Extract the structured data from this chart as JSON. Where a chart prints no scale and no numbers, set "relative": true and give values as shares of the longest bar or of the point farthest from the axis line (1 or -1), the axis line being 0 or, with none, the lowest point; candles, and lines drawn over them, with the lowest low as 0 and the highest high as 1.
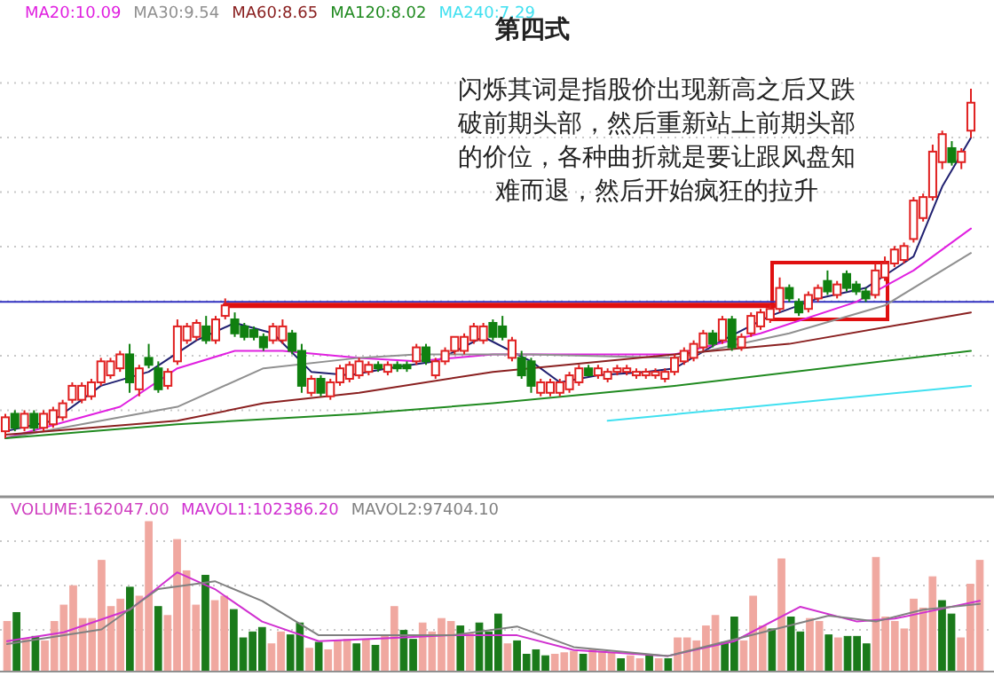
{
  "chart_data": [
    {
      "type": "candlestick",
      "title": "第四式",
      "relative": true,
      "grid": true,
      "categories": [
        null,
        null,
        null,
        null,
        null,
        null,
        null,
        null,
        null,
        null,
        null,
        null,
        null,
        null,
        null,
        null,
        null,
        null,
        null,
        null,
        null,
        null,
        null,
        null,
        null,
        null,
        null,
        null,
        null,
        null,
        null,
        null,
        null,
        null,
        null,
        null,
        null,
        null,
        null,
        null,
        null,
        null,
        null,
        null,
        null,
        null,
        null,
        null,
        null,
        null,
        null,
        null,
        null,
        null,
        null,
        null,
        null,
        null,
        null,
        null,
        null,
        null,
        null,
        null,
        null,
        null,
        null,
        null,
        null,
        null,
        null,
        null,
        null,
        null,
        null,
        null,
        null,
        null,
        null,
        null,
        null,
        null,
        null,
        null,
        null,
        null,
        null,
        null,
        null,
        null,
        null,
        null,
        null,
        null,
        null,
        null,
        null,
        null,
        null,
        null,
        null,
        null
      ],
      "ohlc": [
        [
          0.02,
          0.07,
          0,
          0.06
        ],
        [
          0.07,
          0.08,
          0.02,
          0.03
        ],
        [
          0.03,
          0.08,
          0.02,
          0.07
        ],
        [
          0.07,
          0.08,
          0.02,
          0.03
        ],
        [
          0.03,
          0.08,
          0.02,
          0.07
        ],
        [
          0.04,
          0.09,
          0.03,
          0.08
        ],
        [
          0.06,
          0.11,
          0.05,
          0.1
        ],
        [
          0.11,
          0.16,
          0.1,
          0.15
        ],
        [
          0.11,
          0.16,
          0.1,
          0.15
        ],
        [
          0.12,
          0.17,
          0.11,
          0.16
        ],
        [
          0.16,
          0.23,
          0.15,
          0.22
        ],
        [
          0.18,
          0.23,
          0.17,
          0.22
        ],
        [
          0.2,
          0.25,
          0.19,
          0.24
        ],
        [
          0.24,
          0.27,
          0.13,
          0.16
        ],
        [
          0.14,
          0.21,
          0.12,
          0.2
        ],
        [
          0.23,
          0.27,
          0.2,
          0.21
        ],
        [
          0.2,
          0.22,
          0.13,
          0.14
        ],
        [
          0.15,
          0.2,
          0.14,
          0.19
        ],
        [
          0.22,
          0.34,
          0.21,
          0.32
        ],
        [
          0.28,
          0.33,
          0.27,
          0.32
        ],
        [
          0.29,
          0.34,
          0.28,
          0.33
        ],
        [
          0.32,
          0.35,
          0.27,
          0.28
        ],
        [
          0.28,
          0.35,
          0.27,
          0.34
        ],
        [
          0.35,
          0.4,
          0.34,
          0.38
        ],
        [
          0.34,
          0.36,
          0.29,
          0.3
        ],
        [
          0.32,
          0.33,
          0.28,
          0.29
        ],
        [
          0.31,
          0.32,
          0.28,
          0.29
        ],
        [
          0.29,
          0.3,
          0.25,
          0.26
        ],
        [
          0.28,
          0.33,
          0.27,
          0.32
        ],
        [
          0.28,
          0.34,
          0.27,
          0.32
        ],
        [
          0.3,
          0.31,
          0.24,
          0.25
        ],
        [
          0.25,
          0.27,
          0.13,
          0.15
        ],
        [
          0.13,
          0.18,
          0.12,
          0.17
        ],
        [
          0.17,
          0.18,
          0.12,
          0.13
        ],
        [
          0.12,
          0.17,
          0.11,
          0.16
        ],
        [
          0.16,
          0.21,
          0.15,
          0.2
        ],
        [
          0.17,
          0.22,
          0.16,
          0.21
        ],
        [
          0.18,
          0.23,
          0.17,
          0.22
        ],
        [
          0.19,
          0.22,
          0.18,
          0.21
        ],
        [
          0.21,
          0.22,
          0.19,
          0.2
        ],
        [
          0.19,
          0.22,
          0.18,
          0.21
        ],
        [
          0.21,
          0.22,
          0.19,
          0.2
        ],
        [
          0.21,
          0.22,
          0.19,
          0.2
        ],
        [
          0.22,
          0.27,
          0.21,
          0.26
        ],
        [
          0.26,
          0.27,
          0.21,
          0.22
        ],
        [
          0.18,
          0.23,
          0.17,
          0.22
        ],
        [
          0.22,
          0.26,
          0.21,
          0.25
        ],
        [
          0.25,
          0.29,
          0.24,
          0.29
        ],
        [
          0.25,
          0.3,
          0.24,
          0.29
        ],
        [
          0.28,
          0.33,
          0.27,
          0.32
        ],
        [
          0.28,
          0.33,
          0.27,
          0.32
        ],
        [
          0.33,
          0.34,
          0.28,
          0.29
        ],
        [
          0.32,
          0.35,
          0.28,
          0.29
        ],
        [
          0.23,
          0.29,
          0.22,
          0.28
        ],
        [
          0.23,
          0.25,
          0.17,
          0.18
        ],
        [
          0.22,
          0.23,
          0.13,
          0.15
        ],
        [
          0.13,
          0.17,
          0.12,
          0.16
        ],
        [
          0.13,
          0.17,
          0.12,
          0.16
        ],
        [
          0.13,
          0.17,
          0.12,
          0.16
        ],
        [
          0.14,
          0.19,
          0.13,
          0.18
        ],
        [
          0.16,
          0.21,
          0.15,
          0.2
        ],
        [
          0.2,
          0.21,
          0.18,
          0.18
        ],
        [
          0.18,
          0.21,
          0.17,
          0.2
        ],
        [
          0.17,
          0.2,
          0.16,
          0.19
        ],
        [
          0.19,
          0.21,
          0.18,
          0.2
        ],
        [
          0.19,
          0.21,
          0.18,
          0.2
        ],
        [
          0.18,
          0.2,
          0.17,
          0.19
        ],
        [
          0.18,
          0.2,
          0.17,
          0.19
        ],
        [
          0.18,
          0.2,
          0.17,
          0.19
        ],
        [
          0.17,
          0.2,
          0.16,
          0.19
        ],
        [
          0.19,
          0.24,
          0.18,
          0.23
        ],
        [
          0.22,
          0.26,
          0.21,
          0.25
        ],
        [
          0.23,
          0.28,
          0.22,
          0.27
        ],
        [
          0.26,
          0.31,
          0.25,
          0.3
        ],
        [
          0.3,
          0.31,
          0.26,
          0.27
        ],
        [
          0.28,
          0.35,
          0.27,
          0.34
        ],
        [
          0.34,
          0.35,
          0.25,
          0.26
        ],
        [
          0.26,
          0.3,
          0.25,
          0.29
        ],
        [
          0.3,
          0.36,
          0.29,
          0.35
        ],
        [
          0.32,
          0.37,
          0.31,
          0.36
        ],
        [
          0.34,
          0.38,
          0.33,
          0.37
        ],
        [
          0.37,
          0.46,
          0.36,
          0.43
        ],
        [
          0.43,
          0.44,
          0.39,
          0.4
        ],
        [
          0.39,
          0.4,
          0.35,
          0.36
        ],
        [
          0.37,
          0.42,
          0.36,
          0.41
        ],
        [
          0.4,
          0.44,
          0.39,
          0.43
        ],
        [
          0.45,
          0.48,
          0.41,
          0.42
        ],
        [
          0.41,
          0.45,
          0.4,
          0.44
        ],
        [
          0.47,
          0.48,
          0.42,
          0.43
        ],
        [
          0.44,
          0.45,
          0.41,
          0.42
        ],
        [
          0.42,
          0.43,
          0.39,
          0.4
        ],
        [
          0.41,
          0.5,
          0.4,
          0.48
        ],
        [
          0.46,
          0.52,
          0.45,
          0.5
        ],
        [
          0.5,
          0.55,
          0.49,
          0.54
        ],
        [
          0.51,
          0.56,
          0.5,
          0.55
        ],
        [
          0.57,
          0.69,
          0.56,
          0.68
        ],
        [
          0.63,
          0.7,
          0.62,
          0.69
        ],
        [
          0.69,
          0.84,
          0.68,
          0.82
        ],
        [
          0.79,
          0.88,
          0.77,
          0.87
        ],
        [
          0.83,
          0.85,
          0.78,
          0.79
        ],
        [
          0.79,
          0.83,
          0.77,
          0.82
        ],
        [
          0.88,
          1.0,
          0.86,
          0.96
        ]
      ],
      "series": [
        {
          "type": "line",
          "color": "#202070",
          "values": [
            0.02,
            null,
            null,
            null,
            null,
            0.05,
            null,
            null,
            null,
            null,
            0.15,
            null,
            null,
            null,
            null,
            0.19,
            null,
            null,
            null,
            null,
            0.28,
            null,
            null,
            null,
            0.33,
            null,
            null,
            null,
            0.3,
            null,
            null,
            null,
            0.19,
            null,
            null,
            null,
            0.18,
            null,
            null,
            null,
            0.2,
            null,
            null,
            null,
            null,
            0.22,
            null,
            null,
            null,
            null,
            0.29,
            null,
            null,
            null,
            null,
            0.22,
            null,
            null,
            0.16,
            null,
            null,
            null,
            0.18,
            null,
            null,
            null,
            null,
            0.19,
            null,
            null,
            0.2,
            null,
            null,
            null,
            null,
            0.28,
            null,
            null,
            null,
            null,
            0.35,
            null,
            null,
            null,
            null,
            0.4,
            null,
            null,
            null,
            null,
            0.43,
            null,
            null,
            null,
            null,
            0.52,
            null,
            null,
            0.72,
            null,
            null,
            0.86
          ]
        },
        {
          "type": "line",
          "name": "MA20:10.09",
          "color": "#e020e0",
          "values": [
            0,
            null,
            null,
            null,
            null,
            null,
            null,
            null,
            null,
            null,
            null,
            null,
            0.09,
            null,
            null,
            null,
            null,
            null,
            0.2,
            null,
            null,
            null,
            null,
            null,
            0.25,
            null,
            null,
            null,
            null,
            0.25,
            null,
            null,
            null,
            null,
            null,
            null,
            null,
            0.23,
            null,
            null,
            null,
            null,
            null,
            0.22,
            null,
            null,
            null,
            null,
            null,
            null,
            null,
            0.24,
            null,
            null,
            null,
            null,
            null,
            null,
            0.24,
            null,
            null,
            null,
            null,
            null,
            null,
            null,
            null,
            null,
            null,
            null,
            0.24,
            null,
            null,
            null,
            null,
            null,
            null,
            null,
            null,
            0.3,
            null,
            null,
            null,
            null,
            null,
            null,
            null,
            null,
            null,
            0.39,
            null,
            null,
            null,
            null,
            null,
            0.48,
            null,
            null,
            null,
            null,
            null,
            0.6
          ]
        },
        {
          "type": "line",
          "name": "MA30:9.54",
          "color": "#909090",
          "values": [
            0,
            null,
            null,
            null,
            null,
            null,
            null,
            null,
            null,
            null,
            null,
            null,
            null,
            null,
            null,
            null,
            null,
            null,
            0.09,
            null,
            null,
            null,
            null,
            null,
            null,
            null,
            null,
            0.2,
            null,
            null,
            null,
            null,
            null,
            null,
            null,
            null,
            null,
            0.23,
            null,
            null,
            null,
            null,
            null,
            0.24,
            null,
            null,
            null,
            null,
            null,
            null,
            null,
            null,
            null,
            null,
            null,
            0.24,
            null,
            null,
            null,
            null,
            null,
            null,
            null,
            null,
            null,
            null,
            null,
            null,
            null,
            null,
            0.23,
            null,
            null,
            null,
            null,
            null,
            null,
            null,
            null,
            null,
            null,
            null,
            0.3,
            null,
            null,
            null,
            null,
            null,
            null,
            null,
            null,
            null,
            0.38,
            null,
            null,
            null,
            null,
            null,
            null,
            null,
            null,
            0.53
          ]
        },
        {
          "type": "line",
          "name": "MA60:8.65",
          "color": "#8a2020",
          "values": [
            0.01,
            null,
            null,
            null,
            null,
            null,
            null,
            null,
            null,
            null,
            null,
            null,
            null,
            null,
            null,
            null,
            null,
            null,
            0.05,
            null,
            null,
            null,
            null,
            null,
            null,
            null,
            null,
            0.1,
            null,
            null,
            null,
            null,
            null,
            null,
            null,
            null,
            null,
            0.13,
            null,
            null,
            null,
            null,
            null,
            null,
            null,
            null,
            null,
            null,
            null,
            null,
            null,
            0.19,
            null,
            null,
            null,
            null,
            null,
            null,
            null,
            null,
            null,
            null,
            null,
            null,
            null,
            null,
            null,
            null,
            null,
            null,
            0.24,
            null,
            null,
            null,
            null,
            null,
            null,
            null,
            null,
            null,
            null,
            null,
            0.27,
            null,
            null,
            null,
            null,
            null,
            null,
            null,
            null,
            null,
            null,
            null,
            null,
            null,
            null,
            null,
            null,
            null,
            null,
            0.36
          ]
        },
        {
          "type": "line",
          "name": "MA120:8.02",
          "color": "#208a20",
          "values": [
            0,
            null,
            null,
            null,
            null,
            null,
            null,
            null,
            null,
            null,
            null,
            null,
            null,
            null,
            null,
            null,
            null,
            null,
            0.04,
            null,
            null,
            null,
            null,
            null,
            null,
            null,
            null,
            null,
            null,
            null,
            null,
            null,
            null,
            null,
            null,
            null,
            null,
            0.07,
            null,
            null,
            null,
            null,
            null,
            null,
            null,
            null,
            null,
            null,
            null,
            null,
            null,
            0.1,
            null,
            null,
            null,
            null,
            null,
            null,
            null,
            null,
            null,
            null,
            null,
            null,
            null,
            null,
            null,
            null,
            null,
            null,
            0.15,
            null,
            null,
            null,
            null,
            null,
            null,
            null,
            null,
            null,
            null,
            null,
            null,
            null,
            null,
            null,
            null,
            null,
            null,
            null,
            null,
            null,
            null,
            null,
            null,
            null,
            null,
            null,
            null,
            null,
            null,
            0.25
          ]
        },
        {
          "type": "line",
          "name": "MA240:7.29",
          "color": "#40e0f0",
          "values": [
            null,
            null,
            null,
            null,
            null,
            null,
            null,
            null,
            null,
            null,
            null,
            null,
            null,
            null,
            null,
            null,
            null,
            null,
            null,
            null,
            null,
            null,
            null,
            null,
            null,
            null,
            null,
            null,
            null,
            null,
            null,
            null,
            null,
            null,
            null,
            null,
            null,
            null,
            null,
            null,
            null,
            null,
            null,
            null,
            null,
            null,
            null,
            null,
            null,
            null,
            null,
            null,
            null,
            null,
            null,
            null,
            null,
            null,
            null,
            null,
            null,
            null,
            null,
            0.05,
            null,
            null,
            null,
            null,
            null,
            null,
            null,
            null,
            null,
            null,
            null,
            null,
            null,
            null,
            null,
            null,
            null,
            null,
            null,
            null,
            null,
            null,
            null,
            null,
            null,
            null,
            null,
            null,
            null,
            null,
            null,
            null,
            null,
            null,
            null,
            null,
            null,
            0.15
          ]
        },
        {
          "type": "line",
          "color": "#e01010",
          "values": [
            null,
            null,
            null,
            null,
            null,
            null,
            null,
            null,
            null,
            null,
            null,
            null,
            null,
            null,
            null,
            null,
            null,
            null,
            null,
            null,
            null,
            null,
            null,
            0.38,
            null,
            null,
            null,
            null,
            null,
            null,
            null,
            null,
            null,
            null,
            null,
            null,
            null,
            null,
            null,
            null,
            null,
            null,
            null,
            null,
            null,
            null,
            null,
            null,
            null,
            null,
            null,
            null,
            null,
            null,
            null,
            null,
            null,
            null,
            null,
            null,
            null,
            null,
            null,
            null,
            null,
            null,
            null,
            null,
            null,
            null,
            null,
            null,
            null,
            null,
            null,
            null,
            null,
            null,
            null,
            null,
            null,
            0.38,
            null,
            null,
            null,
            null,
            null,
            null,
            null,
            null,
            null,
            null,
            null,
            null,
            null,
            null,
            null,
            null,
            null,
            null,
            null,
            null
          ]
        }
      ],
      "ref_lines": [
        {
          "axis": "y",
          "value": 0.39,
          "color": "#3030c0"
        }
      ],
      "annotations": [
        "闪烁其词是指股价出现新高之后又跌破前期头部，然后重新站上前期头部的价位，各种曲折就是要让跟风盘知难而退，然后开始疯狂的拉升"
      ]
    },
    {
      "type": "bar",
      "relative": true,
      "grid": true,
      "categories": [
        null,
        null,
        null,
        null,
        null,
        null,
        null,
        null,
        null,
        null,
        null,
        null,
        null,
        null,
        null,
        null,
        null,
        null,
        null,
        null,
        null,
        null,
        null,
        null,
        null,
        null,
        null,
        null,
        null,
        null,
        null,
        null,
        null,
        null,
        null,
        null,
        null,
        null,
        null,
        null,
        null,
        null,
        null,
        null,
        null,
        null,
        null,
        null,
        null,
        null,
        null,
        null,
        null,
        null,
        null,
        null,
        null,
        null,
        null,
        null,
        null,
        null,
        null,
        null,
        null,
        null,
        null,
        null,
        null,
        null,
        null,
        null,
        null,
        null,
        null,
        null,
        null,
        null,
        null,
        null,
        null,
        null,
        null,
        null,
        null,
        null,
        null,
        null,
        null,
        null,
        null,
        null,
        null,
        null,
        null,
        null,
        null,
        null,
        null,
        null,
        null,
        null,
        null,
        null
      ],
      "series": [
        {
          "type": "bar",
          "name": "VOLUME:162047.00",
          "values": [
            0.33,
            0.39,
            0.21,
            0.23,
            0.2,
            0.33,
            0.44,
            0.57,
            0.35,
            0.35,
            0.74,
            0.43,
            0.48,
            0.56,
            0.5,
            1.0,
            0.43,
            0.37,
            0.88,
            0.67,
            0.44,
            0.64,
            0.47,
            0.5,
            0.41,
            0.22,
            0.26,
            0.29,
            0.18,
            0.26,
            0.24,
            0.32,
            0.15,
            0.19,
            0.14,
            0.2,
            0.21,
            0.18,
            0.21,
            0.17,
            0.24,
            0.43,
            0.27,
            0.21,
            0.32,
            0.26,
            0.35,
            0.33,
            0.3,
            0.25,
            0.32,
            0.26,
            0.38,
            0.18,
            0.2,
            0.11,
            0.14,
            0.1,
            0.11,
            0.12,
            0.13,
            0.11,
            0.14,
            0.13,
            0.12,
            0.08,
            0.1,
            0.08,
            0.11,
            0.08,
            0.08,
            0.22,
            0.22,
            0.2,
            0.3,
            0.37,
            0.19,
            0.36,
            0.2,
            0.5,
            0.3,
            0.28,
            0.75,
            0.36,
            0.26,
            0.35,
            0.33,
            0.24,
            0.22,
            0.23,
            0.23,
            0.18,
            0.76,
            0.36,
            0.33,
            0.28,
            0.48,
            0.42,
            0.63,
            0.47,
            0.38,
            0.22,
            0.58,
            0.74
          ],
          "colors": [
            "#f0a8a0",
            "#1a7a1a",
            "#f0a8a0",
            "#1a7a1a",
            "#f0a8a0",
            "#f0a8a0",
            "#f0a8a0",
            "#f0a8a0",
            "#f0a8a0",
            "#f0a8a0",
            "#f0a8a0",
            "#f0a8a0",
            "#f0a8a0",
            "#1a7a1a",
            "#f0a8a0",
            "#f0a8a0",
            "#1a7a1a",
            "#f0a8a0",
            "#f0a8a0",
            "#f0a8a0",
            "#f0a8a0",
            "#1a7a1a",
            "#f0a8a0",
            "#f0a8a0",
            "#1a7a1a",
            "#1a7a1a",
            "#1a7a1a",
            "#1a7a1a",
            "#f0a8a0",
            "#f0a8a0",
            "#1a7a1a",
            "#1a7a1a",
            "#f0a8a0",
            "#1a7a1a",
            "#f0a8a0",
            "#f0a8a0",
            "#f0a8a0",
            "#1a7a1a",
            "#f0a8a0",
            "#1a7a1a",
            "#f0a8a0",
            "#f0a8a0",
            "#1a7a1a",
            "#1a7a1a",
            "#f0a8a0",
            "#f0a8a0",
            "#f0a8a0",
            "#f0a8a0",
            "#1a7a1a",
            "#f0a8a0",
            "#1a7a1a",
            "#1a7a1a",
            "#1a7a1a",
            "#f0a8a0",
            "#1a7a1a",
            "#1a7a1a",
            "#1a7a1a",
            "#1a7a1a",
            "#f0a8a0",
            "#f0a8a0",
            "#f0a8a0",
            "#1a7a1a",
            "#f0a8a0",
            "#f0a8a0",
            "#f0a8a0",
            "#1a7a1a",
            "#f0a8a0",
            "#f0a8a0",
            "#1a7a1a",
            "#f0a8a0",
            "#1a7a1a",
            "#f0a8a0",
            "#f0a8a0",
            "#f0a8a0",
            "#f0a8a0",
            "#f0a8a0",
            "#1a7a1a",
            "#1a7a1a",
            "#f0a8a0",
            "#f0a8a0",
            "#f0a8a0",
            "#1a7a1a",
            "#f0a8a0",
            "#1a7a1a",
            "#1a7a1a",
            "#f0a8a0",
            "#f0a8a0",
            "#1a7a1a",
            "#f0a8a0",
            "#1a7a1a",
            "#1a7a1a",
            "#1a7a1a",
            "#f0a8a0",
            "#f0a8a0",
            "#f0a8a0",
            "#f0a8a0",
            "#f0a8a0",
            "#f0a8a0",
            "#f0a8a0",
            "#1a7a1a",
            "#1a7a1a",
            "#f0a8a0",
            "#f0a8a0",
            "#f0a8a0"
          ]
        }
      ]
    },
    {
      "type": "line",
      "relative": true,
      "categories": [
        null,
        null,
        null,
        null,
        null,
        null,
        null,
        null,
        null,
        null,
        null,
        null,
        null,
        null,
        null,
        null,
        null,
        null,
        null,
        null,
        null,
        null,
        null,
        null,
        null,
        null,
        null,
        null,
        null,
        null,
        null,
        null,
        null,
        null,
        null,
        null,
        null,
        null,
        null,
        null,
        null,
        null,
        null,
        null,
        null,
        null,
        null,
        null,
        null,
        null,
        null,
        null,
        null,
        null,
        null,
        null,
        null,
        null,
        null,
        null,
        null,
        null,
        null,
        null,
        null,
        null,
        null,
        null,
        null,
        null,
        null,
        null,
        null,
        null,
        null,
        null,
        null,
        null,
        null,
        null,
        null,
        null,
        null,
        null,
        null,
        null,
        null,
        null,
        null,
        null,
        null,
        null,
        null,
        null,
        null,
        null,
        null,
        null,
        null,
        null,
        null,
        null,
        null,
        null
      ],
      "series": [
        {
          "type": "line",
          "name": "MAVOL1:102386.20",
          "color": "#d030d0",
          "values": [
            0.3,
            null,
            null,
            null,
            null,
            null,
            0.39,
            null,
            null,
            null,
            null,
            null,
            null,
            0.62,
            null,
            null,
            null,
            null,
            1.0,
            null,
            null,
            null,
            0.83,
            null,
            null,
            null,
            null,
            0.5,
            null,
            null,
            null,
            null,
            null,
            0.3,
            null,
            null,
            null,
            null,
            null,
            null,
            0.33,
            null,
            null,
            null,
            null,
            null,
            null,
            0.36,
            null,
            null,
            null,
            null,
            null,
            null,
            0.36,
            null,
            null,
            null,
            null,
            null,
            0.21,
            null,
            null,
            null,
            null,
            null,
            null,
            null,
            null,
            null,
            0.15,
            null,
            null,
            null,
            null,
            null,
            null,
            0.3,
            null,
            null,
            null,
            null,
            null,
            null,
            0.65,
            null,
            null,
            null,
            null,
            null,
            0.5,
            null,
            null,
            null,
            0.53,
            null,
            null,
            0.59,
            null,
            null,
            null,
            null,
            null,
            0.71
          ]
        },
        {
          "type": "line",
          "name": "MAVOL2:97404.10",
          "color": "#808080",
          "values": [
            0.27,
            null,
            null,
            null,
            null,
            null,
            null,
            null,
            null,
            null,
            0.42,
            null,
            null,
            null,
            null,
            null,
            0.83,
            null,
            null,
            null,
            null,
            null,
            0.91,
            null,
            null,
            null,
            null,
            0.71,
            null,
            null,
            null,
            null,
            null,
            0.36,
            null,
            null,
            null,
            null,
            null,
            null,
            null,
            null,
            null,
            null,
            null,
            null,
            null,
            0.36,
            null,
            null,
            null,
            null,
            null,
            null,
            0.45,
            null,
            null,
            null,
            null,
            null,
            0.24,
            null,
            null,
            null,
            null,
            null,
            null,
            null,
            null,
            null,
            0.15,
            null,
            null,
            null,
            null,
            null,
            null,
            null,
            null,
            null,
            0.39,
            null,
            null,
            null,
            null,
            null,
            null,
            0.56,
            null,
            null,
            null,
            null,
            0.5,
            null,
            null,
            null,
            null,
            0.62,
            null,
            null,
            null,
            null,
            null,
            0.68
          ]
        }
      ]
    }
  ]
}
